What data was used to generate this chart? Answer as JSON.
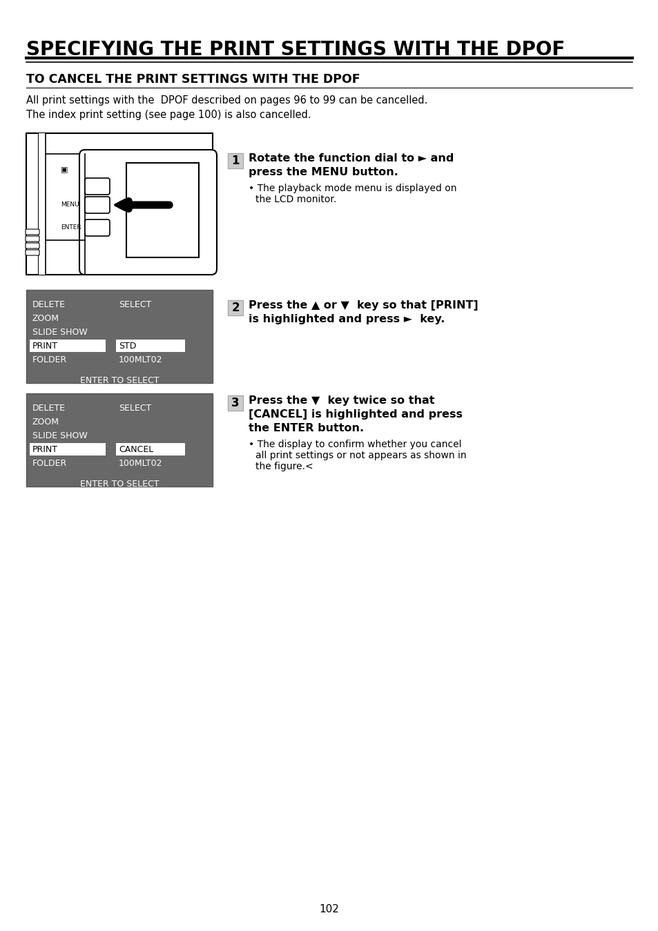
{
  "title": "SPECIFYING THE PRINT SETTINGS WITH THE DPOF",
  "subtitle": "TO CANCEL THE PRINT SETTINGS WITH THE DPOF",
  "body_text1": "All print settings with the  DPOF described on pages 96 to 99 can be cancelled.\nThe index print setting (see page 100) is also cancelled.",
  "page_number": "102",
  "bg_color": "#ffffff",
  "title_color": "#000000",
  "step1_bold_line1": "Rotate the function dial to ► and",
  "step1_bold_line2": "press the MENU button.",
  "step1_bullet": "The playback mode menu is displayed on\nthe LCD monitor.",
  "step2_bold_line1": "Press the ▲ or ▼  key so that [PRINT]",
  "step2_bold_line2": "is highlighted and press ►  key.",
  "step3_bold_line1": "Press the ▼  key twice so that",
  "step3_bold_line2": "[CANCEL] is highlighted and press",
  "step3_bold_line3": "the ENTER button.",
  "step3_bullet": "The display to confirm whether you cancel\nall print settings or not appears as shown in\nthe figure.<",
  "menu_bg": "#666666",
  "menu1_items_left": [
    "DELETE",
    "ZOOM",
    "SLIDE SHOW",
    "PRINT",
    "FOLDER"
  ],
  "menu1_items_right": [
    "SELECT",
    "",
    "",
    "STD",
    "100MLT02"
  ],
  "menu1_highlight_row": 3,
  "menu2_items_left": [
    "DELETE",
    "ZOOM",
    "SLIDE SHOW",
    "PRINT",
    "FOLDER"
  ],
  "menu2_items_right": [
    "SELECT",
    "",
    "",
    "CANCEL",
    "100MLT02"
  ],
  "menu2_highlight_row": 3,
  "enter_to_select": "ENTER TO SELECT"
}
